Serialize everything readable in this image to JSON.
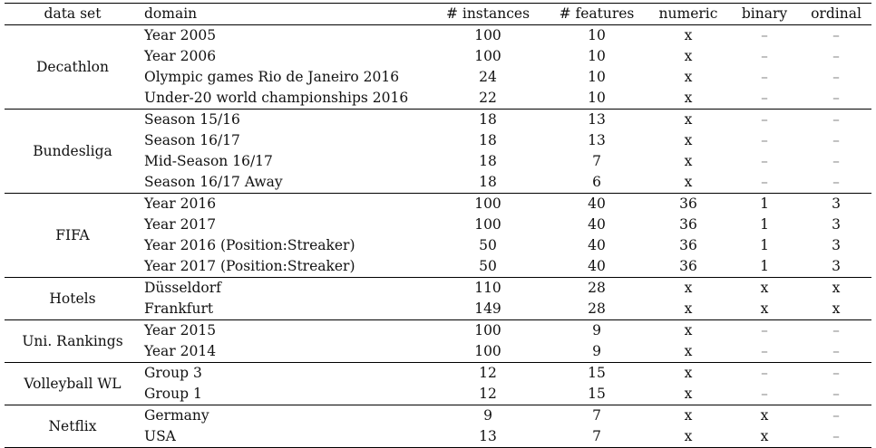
{
  "headers": [
    "data set",
    "domain",
    "# instances",
    "# features",
    "numeric",
    "binary",
    "ordinal"
  ],
  "groups": [
    {
      "dataset": "Decathlon",
      "rows": [
        {
          "domain": "Year 2005",
          "instances": "100",
          "features": "10",
          "numeric": "x",
          "binary": "–",
          "ordinal": "–"
        },
        {
          "domain": "Year 2006",
          "instances": "100",
          "features": "10",
          "numeric": "x",
          "binary": "–",
          "ordinal": "–"
        },
        {
          "domain": "Olympic games Rio de Janeiro 2016",
          "instances": "24",
          "features": "10",
          "numeric": "x",
          "binary": "–",
          "ordinal": "–"
        },
        {
          "domain": "Under-20 world championships 2016",
          "instances": "22",
          "features": "10",
          "numeric": "x",
          "binary": "–",
          "ordinal": "–"
        }
      ]
    },
    {
      "dataset": "Bundesliga",
      "rows": [
        {
          "domain": "Season 15/16",
          "instances": "18",
          "features": "13",
          "numeric": "x",
          "binary": "–",
          "ordinal": "–"
        },
        {
          "domain": "Season 16/17",
          "instances": "18",
          "features": "13",
          "numeric": "x",
          "binary": "–",
          "ordinal": "–"
        },
        {
          "domain": "Mid-Season 16/17",
          "instances": "18",
          "features": "7",
          "numeric": "x",
          "binary": "–",
          "ordinal": "–"
        },
        {
          "domain": "Season 16/17 Away",
          "instances": "18",
          "features": "6",
          "numeric": "x",
          "binary": "–",
          "ordinal": "–"
        }
      ]
    },
    {
      "dataset": "FIFA",
      "rows": [
        {
          "domain": "Year 2016",
          "instances": "100",
          "features": "40",
          "numeric": "36",
          "binary": "1",
          "ordinal": "3"
        },
        {
          "domain": "Year 2017",
          "instances": "100",
          "features": "40",
          "numeric": "36",
          "binary": "1",
          "ordinal": "3"
        },
        {
          "domain": "Year 2016 (Position:Streaker)",
          "instances": "50",
          "features": "40",
          "numeric": "36",
          "binary": "1",
          "ordinal": "3"
        },
        {
          "domain": "Year 2017 (Position:Streaker)",
          "instances": "50",
          "features": "40",
          "numeric": "36",
          "binary": "1",
          "ordinal": "3"
        }
      ]
    },
    {
      "dataset": "Hotels",
      "rows": [
        {
          "domain": "Düsseldorf",
          "instances": "110",
          "features": "28",
          "numeric": "x",
          "binary": "x",
          "ordinal": "x"
        },
        {
          "domain": "Frankfurt",
          "instances": "149",
          "features": "28",
          "numeric": "x",
          "binary": "x",
          "ordinal": "x"
        }
      ]
    },
    {
      "dataset": "Uni. Rankings",
      "rows": [
        {
          "domain": "Year 2015",
          "instances": "100",
          "features": "9",
          "numeric": "x",
          "binary": "–",
          "ordinal": "–"
        },
        {
          "domain": "Year 2014",
          "instances": "100",
          "features": "9",
          "numeric": "x",
          "binary": "–",
          "ordinal": "–"
        }
      ]
    },
    {
      "dataset": "Volleyball WL",
      "rows": [
        {
          "domain": "Group 3",
          "instances": "12",
          "features": "15",
          "numeric": "x",
          "binary": "–",
          "ordinal": "–"
        },
        {
          "domain": "Group 1",
          "instances": "12",
          "features": "15",
          "numeric": "x",
          "binary": "–",
          "ordinal": "–"
        }
      ]
    },
    {
      "dataset": "Netflix",
      "rows": [
        {
          "domain": "Germany",
          "instances": "9",
          "features": "7",
          "numeric": "x",
          "binary": "x",
          "ordinal": "–"
        },
        {
          "domain": "USA",
          "instances": "13",
          "features": "7",
          "numeric": "x",
          "binary": "x",
          "ordinal": "–"
        }
      ]
    }
  ]
}
